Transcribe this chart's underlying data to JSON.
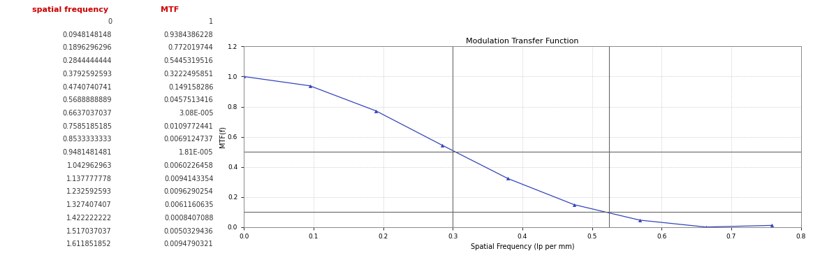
{
  "table_headers": [
    "spatial frequency",
    "MTF"
  ],
  "table_data": [
    [
      0,
      1
    ],
    [
      0.0948148148,
      0.9384386228
    ],
    [
      0.1896296296,
      0.772019744
    ],
    [
      0.2844444444,
      0.5445319516
    ],
    [
      0.3792592593,
      0.3222495851
    ],
    [
      0.4740740741,
      0.149158286
    ],
    [
      0.5688888889,
      0.0457513416
    ],
    [
      0.6637037037,
      3.08e-05
    ],
    [
      0.7585185185,
      0.0109772441
    ],
    [
      0.8533333333,
      0.0069124737
    ],
    [
      0.9481481481,
      1.81e-05
    ],
    [
      1.042962963,
      0.0060226458
    ],
    [
      1.1377777778,
      0.0094143354
    ],
    [
      1.2325925926,
      0.0096290254
    ],
    [
      1.3274074074,
      0.0061160635
    ],
    [
      1.4222222222,
      0.0008407088
    ],
    [
      1.517037037,
      0.0050329436
    ],
    [
      1.6118518519,
      0.0094790321
    ]
  ],
  "header_color": "#cc0000",
  "table_bg": "#ffffff",
  "table_border_color": "#999999",
  "plot_title": "Modulation Transfer Function",
  "xlabel": "Spatial Frequency (lp per mm)",
  "ylabel": "MTF(f)",
  "xlim": [
    0.0,
    0.8
  ],
  "ylim": [
    0.0,
    1.2
  ],
  "yticks": [
    0.0,
    0.2,
    0.4,
    0.6,
    0.8,
    1.0,
    1.2
  ],
  "xticks": [
    0.0,
    0.1,
    0.2,
    0.3,
    0.4,
    0.5,
    0.6,
    0.7,
    0.8
  ],
  "line_color": "#3344bb",
  "marker_style": "^",
  "marker_size": 3,
  "marker_color": "#3344bb",
  "hline_50": 0.5,
  "hline_10": 0.1,
  "vline_50_x": 0.3,
  "vline_10_x": 0.525,
  "ref_line_color": "#666666",
  "grid_color": "#bbbbbb",
  "grid_style": "dotted",
  "plot_bg": "#ffffff",
  "fig_bg": "#ffffff",
  "title_fontsize": 8,
  "axis_label_fontsize": 7,
  "tick_fontsize": 6.5,
  "table_header_fontsize": 8,
  "table_data_fontsize": 7
}
